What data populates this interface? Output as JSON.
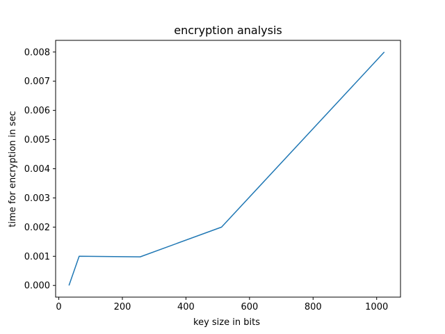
{
  "chart_data": {
    "type": "line",
    "title": "encryption analysis",
    "xlabel": "key size in bits",
    "ylabel": "time for encryption in sec",
    "xlim": [
      -10,
      1075
    ],
    "ylim": [
      -0.0004,
      0.0084
    ],
    "x_ticks": [
      0,
      200,
      400,
      600,
      800,
      1000
    ],
    "x_tick_labels": [
      "0",
      "200",
      "400",
      "600",
      "800",
      "1000"
    ],
    "y_ticks": [
      0.0,
      0.001,
      0.002,
      0.003,
      0.004,
      0.005,
      0.006,
      0.007,
      0.008
    ],
    "y_tick_labels": [
      "0.000",
      "0.001",
      "0.002",
      "0.003",
      "0.004",
      "0.005",
      "0.006",
      "0.007",
      "0.008"
    ],
    "grid": false,
    "legend": "none",
    "series": [
      {
        "color": "#1f77b4",
        "x": [
          32,
          64,
          256,
          512,
          1024
        ],
        "y": [
          0.0,
          0.001,
          0.00098,
          0.002,
          0.008
        ]
      }
    ]
  }
}
